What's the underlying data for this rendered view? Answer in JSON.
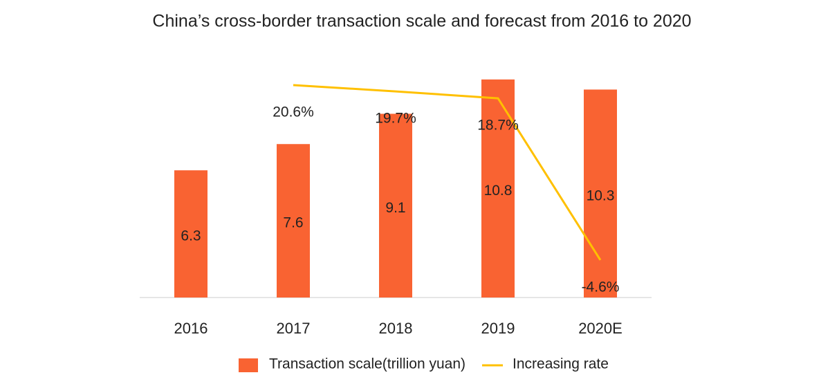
{
  "chart_data": {
    "type": "bar",
    "title": "China’s cross-border transaction scale and forecast from 2016 to 2020",
    "categories": [
      "2016",
      "2017",
      "2018",
      "2019",
      "2020E"
    ],
    "series": [
      {
        "name": "Transaction scale(trillion yuan)",
        "type": "bar",
        "color": "#f96332",
        "values": [
          6.3,
          7.6,
          9.1,
          10.8,
          10.3
        ]
      },
      {
        "name": "Increasing rate",
        "type": "line",
        "axis": "y2",
        "color": "#ffc000",
        "values": [
          null,
          20.6,
          19.7,
          18.7,
          -4.6
        ],
        "value_labels": [
          null,
          "20.6%",
          "19.7%",
          "18.7%",
          "-4.6%"
        ]
      }
    ],
    "ylim": [
      0,
      11
    ],
    "y2lim": [
      -10,
      22
    ],
    "legend": "bottom"
  }
}
